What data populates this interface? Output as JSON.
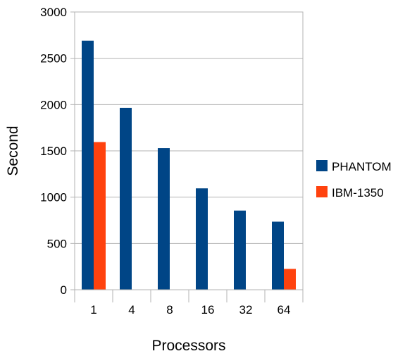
{
  "chart_data": {
    "type": "bar",
    "categories": [
      "1",
      "4",
      "8",
      "16",
      "32",
      "64"
    ],
    "series": [
      {
        "name": "PHANTOM",
        "values": [
          2690,
          1965,
          1530,
          1095,
          855,
          735
        ],
        "color": "#004586"
      },
      {
        "name": "IBM-1350",
        "values": [
          1595,
          null,
          null,
          null,
          null,
          225
        ],
        "color": "#ff420e"
      }
    ],
    "xlabel": "Processors",
    "ylabel": "Second",
    "ylim": [
      0,
      3000
    ],
    "yticks": [
      "0",
      "500",
      "1000",
      "1500",
      "2000",
      "2500",
      "3000"
    ],
    "grid": true,
    "legend_position": "right"
  }
}
